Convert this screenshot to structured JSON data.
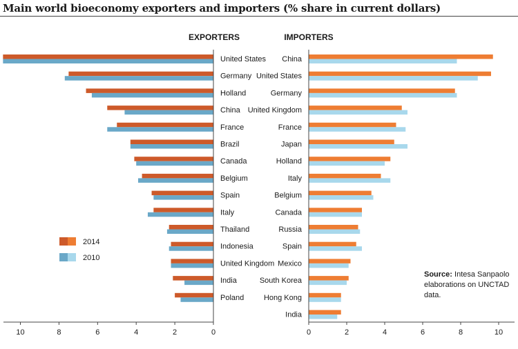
{
  "title": "Main world bioeconomy exporters and importers (% share in current dollars)",
  "source": {
    "label": "Source:",
    "text": "Intesa Sanpaolo elaborations on UNCTAD data."
  },
  "colors": {
    "exp_2014": "#cd5a2a",
    "exp_2010": "#6aa8c8",
    "imp_2014": "#ee7d33",
    "imp_2010": "#a8d8ec",
    "axis": "#444444",
    "text": "#1a1a1a"
  },
  "legend": [
    {
      "name": "2014"
    },
    {
      "name": "2010"
    }
  ],
  "chart_data": [
    {
      "type": "bar",
      "orientation": "horizontal",
      "direction": "right-to-left",
      "title": "EXPORTERS",
      "categories": [
        "United States",
        "Germany",
        "Holland",
        "China",
        "France",
        "Brazil",
        "Canada",
        "Belgium",
        "Spain",
        "Italy",
        "Thailand",
        "Indonesia",
        "United Kingdom",
        "India",
        "Poland"
      ],
      "series": [
        {
          "name": "2014",
          "values": [
            10.9,
            7.5,
            6.6,
            5.5,
            5.0,
            4.3,
            4.1,
            3.7,
            3.2,
            3.1,
            2.3,
            2.2,
            2.2,
            2.1,
            2.0
          ]
        },
        {
          "name": "2010",
          "values": [
            10.9,
            7.7,
            6.3,
            4.6,
            5.5,
            4.3,
            4.0,
            3.9,
            3.1,
            3.4,
            2.4,
            2.3,
            2.2,
            1.5,
            1.7
          ]
        }
      ],
      "xlim": [
        0,
        11
      ],
      "xticks": [
        10,
        8,
        6,
        4,
        2,
        0
      ],
      "grid": false
    },
    {
      "type": "bar",
      "orientation": "horizontal",
      "title": "IMPORTERS",
      "categories": [
        "China",
        "United States",
        "Germany",
        "United Kingdom",
        "France",
        "Japan",
        "Holland",
        "Italy",
        "Belgium",
        "Canada",
        "Russia",
        "Spain",
        "Mexico",
        "South Korea",
        "Hong Kong",
        "India"
      ],
      "series": [
        {
          "name": "2014",
          "values": [
            9.7,
            9.6,
            7.7,
            4.9,
            4.6,
            4.5,
            4.3,
            3.8,
            3.3,
            2.8,
            2.6,
            2.5,
            2.2,
            2.1,
            1.7,
            1.7
          ]
        },
        {
          "name": "2010",
          "values": [
            7.8,
            8.9,
            7.8,
            5.2,
            5.1,
            5.2,
            4.0,
            4.3,
            3.4,
            2.8,
            2.7,
            2.8,
            2.1,
            2.0,
            1.7,
            1.5
          ]
        }
      ],
      "xlim": [
        0,
        10.5
      ],
      "xticks": [
        0,
        2,
        4,
        6,
        8,
        10
      ],
      "grid": false
    }
  ]
}
